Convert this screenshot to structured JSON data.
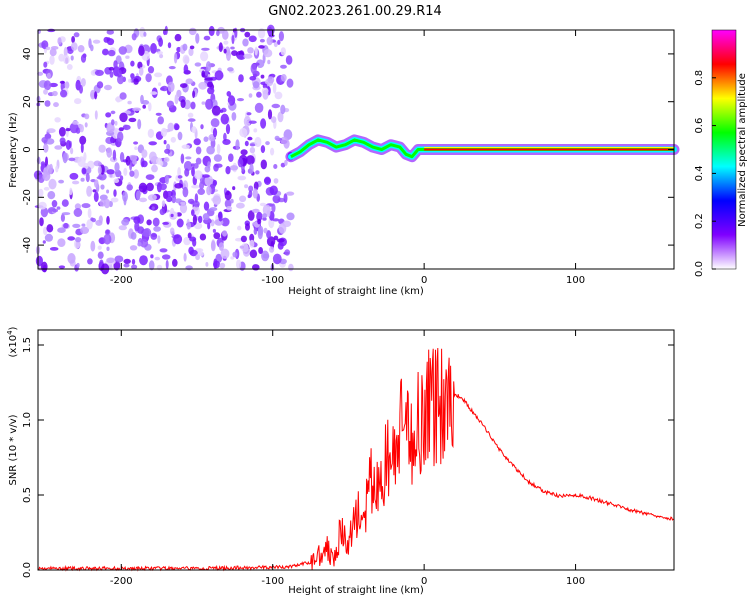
{
  "title": "GN02.2023.261.00.29.R14",
  "chart_data": [
    {
      "type": "heatmap",
      "name": "spectrogram",
      "xlabel": "Height of straight line (km)",
      "ylabel": "Frequency (Hz)",
      "xlim": [
        -255,
        165
      ],
      "ylim": [
        -50,
        50
      ],
      "xticks": [
        -200,
        -100,
        0,
        100
      ],
      "yticks": [
        -40,
        -20,
        0,
        20,
        40
      ],
      "noise_region_x": [
        -255,
        -88
      ],
      "signal_trace": {
        "x": [
          -88,
          -82,
          -76,
          -70,
          -64,
          -58,
          -52,
          -46,
          -40,
          -34,
          -28,
          -22,
          -16,
          -12,
          -8,
          -4,
          0,
          165
        ],
        "y": [
          -3,
          -1,
          2,
          4,
          3,
          1,
          2,
          4,
          3,
          1,
          0,
          2,
          1,
          -2,
          -3,
          0,
          0,
          0
        ]
      },
      "colorbar": {
        "label": "Normalized spectral amplitude",
        "range": [
          0.0,
          1.0
        ],
        "ticks": [
          "0.0",
          "0.2",
          "0.4",
          "0.6",
          "0.8"
        ],
        "tick_values": [
          0.0,
          0.2,
          0.4,
          0.6,
          0.8
        ],
        "colors": [
          "#ffffff",
          "#7f00ff",
          "#0000ff",
          "#00ffff",
          "#00ff00",
          "#ffff00",
          "#ff0000",
          "#ff00ff"
        ]
      }
    },
    {
      "type": "line",
      "name": "snr",
      "xlabel": "Height of straight line (km)",
      "ylabel": "SNR (10 * v/v)",
      "yscale_label": "(x10",
      "yscale_exp": "4",
      "yscale_close": ")",
      "xlim": [
        -255,
        165
      ],
      "ylim": [
        0,
        1.6
      ],
      "xticks": [
        -200,
        -100,
        0,
        100
      ],
      "yticks": [
        "0.0",
        "0.5",
        "1.0",
        "1.5"
      ],
      "ytick_values": [
        0.0,
        0.5,
        1.0,
        1.5
      ],
      "series": [
        {
          "name": "SNR",
          "color": "#ff0000",
          "x": [
            -255,
            -150,
            -90,
            -75,
            -65,
            -60,
            -55,
            -50,
            -45,
            -40,
            -35,
            -30,
            -25,
            -20,
            -15,
            -10,
            -5,
            0,
            5,
            10,
            15,
            20,
            25,
            30,
            40,
            50,
            60,
            70,
            80,
            90,
            100,
            110,
            120,
            130,
            140,
            150,
            165
          ],
          "y": [
            0.01,
            0.01,
            0.02,
            0.05,
            0.15,
            0.1,
            0.25,
            0.15,
            0.4,
            0.3,
            0.6,
            0.5,
            0.75,
            0.7,
            0.95,
            0.85,
            1.0,
            1.05,
            1.1,
            1.12,
            1.15,
            1.17,
            1.15,
            1.08,
            0.95,
            0.8,
            0.68,
            0.58,
            0.52,
            0.49,
            0.5,
            0.48,
            0.45,
            0.42,
            0.39,
            0.37,
            0.34
          ]
        }
      ]
    }
  ]
}
